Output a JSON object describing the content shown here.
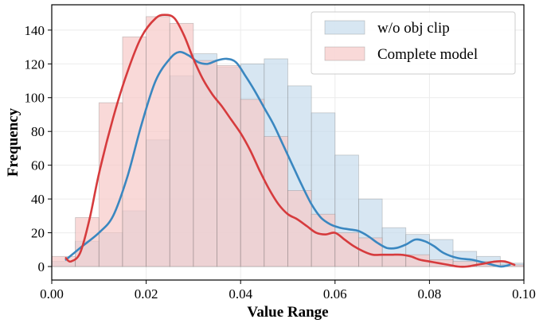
{
  "chart_data": {
    "type": "histogram",
    "xlabel": "Value Range",
    "ylabel": "Frequency",
    "xlim": [
      0.0,
      0.1
    ],
    "ylim": [
      -8,
      155
    ],
    "bin_width": 0.005,
    "xticks": [
      0.0,
      0.02,
      0.04,
      0.06,
      0.08,
      0.1
    ],
    "xtick_labels": [
      "0.00",
      "0.02",
      "0.04",
      "0.06",
      "0.08",
      "0.10"
    ],
    "yticks": [
      0,
      20,
      40,
      60,
      80,
      100,
      120,
      140
    ],
    "ytick_labels": [
      "0",
      "20",
      "40",
      "60",
      "80",
      "100",
      "120",
      "140"
    ],
    "grid": true,
    "legend_position": "top-right",
    "bin_edges": [
      0.0,
      0.005,
      0.01,
      0.015,
      0.02,
      0.025,
      0.03,
      0.035,
      0.04,
      0.045,
      0.05,
      0.055,
      0.06,
      0.065,
      0.07,
      0.075,
      0.08,
      0.085,
      0.09,
      0.095,
      0.1
    ],
    "series": [
      {
        "name": "w/o obj clip",
        "bar_color": "#c6dbec",
        "line_color": "#3a87c0",
        "values": [
          3,
          15,
          20,
          33,
          75,
          113,
          126,
          118,
          120,
          123,
          107,
          91,
          66,
          40,
          23,
          19,
          16,
          9,
          6,
          2
        ],
        "kde": [
          [
            0.003,
            4
          ],
          [
            0.006,
            11
          ],
          [
            0.01,
            20
          ],
          [
            0.013,
            30
          ],
          [
            0.016,
            53
          ],
          [
            0.019,
            84
          ],
          [
            0.022,
            110
          ],
          [
            0.025,
            123
          ],
          [
            0.027,
            127
          ],
          [
            0.029,
            125
          ],
          [
            0.031,
            121
          ],
          [
            0.033,
            120
          ],
          [
            0.035,
            122
          ],
          [
            0.037,
            123
          ],
          [
            0.039,
            121
          ],
          [
            0.041,
            113
          ],
          [
            0.043,
            104
          ],
          [
            0.045,
            94
          ],
          [
            0.047,
            84
          ],
          [
            0.049,
            72
          ],
          [
            0.051,
            60
          ],
          [
            0.053,
            48
          ],
          [
            0.055,
            37
          ],
          [
            0.057,
            29
          ],
          [
            0.059,
            25
          ],
          [
            0.061,
            23
          ],
          [
            0.063,
            22
          ],
          [
            0.065,
            21
          ],
          [
            0.067,
            18
          ],
          [
            0.069,
            14
          ],
          [
            0.071,
            11
          ],
          [
            0.073,
            11
          ],
          [
            0.075,
            13
          ],
          [
            0.077,
            16
          ],
          [
            0.079,
            15
          ],
          [
            0.081,
            12
          ],
          [
            0.083,
            8
          ],
          [
            0.086,
            5
          ],
          [
            0.089,
            4
          ],
          [
            0.092,
            2
          ],
          [
            0.095,
            0
          ],
          [
            0.097,
            1
          ]
        ]
      },
      {
        "name": "Complete model",
        "bar_color": "#f6c9c8",
        "line_color": "#d63b3d",
        "values": [
          6,
          29,
          97,
          136,
          148,
          144,
          122,
          119,
          99,
          77,
          45,
          31,
          20,
          17,
          7,
          7,
          4,
          3,
          3,
          1
        ],
        "kde": [
          [
            0.003,
            5
          ],
          [
            0.004,
            3
          ],
          [
            0.006,
            8
          ],
          [
            0.008,
            28
          ],
          [
            0.01,
            55
          ],
          [
            0.013,
            88
          ],
          [
            0.016,
            115
          ],
          [
            0.019,
            136
          ],
          [
            0.022,
            147
          ],
          [
            0.024,
            149
          ],
          [
            0.026,
            147
          ],
          [
            0.028,
            137
          ],
          [
            0.03,
            123
          ],
          [
            0.032,
            111
          ],
          [
            0.034,
            102
          ],
          [
            0.036,
            95
          ],
          [
            0.038,
            87
          ],
          [
            0.04,
            79
          ],
          [
            0.042,
            69
          ],
          [
            0.044,
            57
          ],
          [
            0.046,
            46
          ],
          [
            0.048,
            37
          ],
          [
            0.05,
            31
          ],
          [
            0.052,
            28
          ],
          [
            0.054,
            24
          ],
          [
            0.056,
            20
          ],
          [
            0.058,
            19
          ],
          [
            0.06,
            20
          ],
          [
            0.062,
            16
          ],
          [
            0.064,
            12
          ],
          [
            0.066,
            9
          ],
          [
            0.068,
            7
          ],
          [
            0.07,
            7
          ],
          [
            0.072,
            7
          ],
          [
            0.074,
            7
          ],
          [
            0.076,
            6
          ],
          [
            0.078,
            4
          ],
          [
            0.08,
            3
          ],
          [
            0.082,
            2
          ],
          [
            0.084,
            1
          ],
          [
            0.086,
            0
          ],
          [
            0.088,
            0
          ],
          [
            0.09,
            1
          ],
          [
            0.092,
            2
          ],
          [
            0.094,
            3
          ],
          [
            0.096,
            3
          ],
          [
            0.098,
            1
          ]
        ]
      }
    ]
  }
}
